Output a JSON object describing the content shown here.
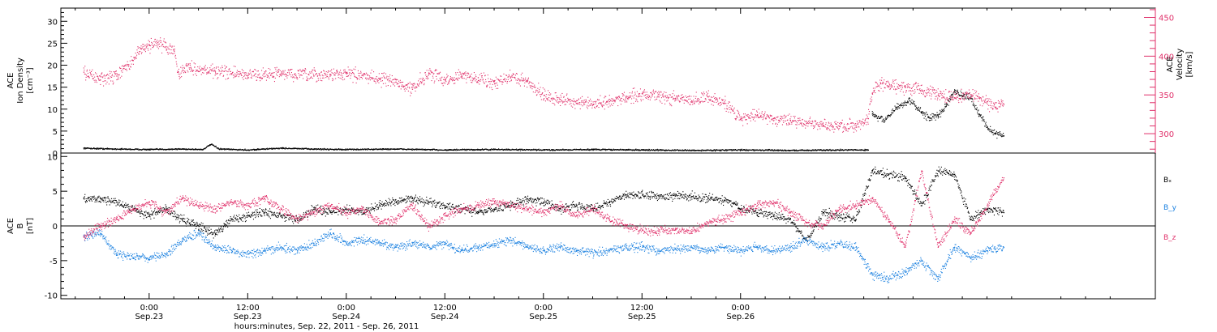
{
  "chart_data": [
    {
      "panel": "plasma",
      "type": "scatter",
      "left_axis": {
        "label_lines": [
          "ACE",
          "Ion Density",
          "[cm⁻³]"
        ],
        "ylim": [
          0,
          33
        ],
        "ticks": [
          0,
          5,
          10,
          15,
          20,
          25,
          30
        ]
      },
      "right_axis": {
        "label_lines": [
          "ACE",
          "Velocity",
          "[km/s]"
        ],
        "ylim": [
          275,
          462
        ],
        "ticks": [
          300,
          350,
          400,
          450
        ],
        "color": "#e0306a"
      },
      "series": [
        {
          "axis": "left",
          "color": "#000000",
          "points": [
            [
              -8,
              1.2
            ],
            [
              -4,
              1.0
            ],
            [
              0,
              0.9
            ],
            [
              4,
              1.0
            ],
            [
              6.5,
              0.9
            ],
            [
              7.5,
              2.1
            ],
            [
              8.5,
              1.0
            ],
            [
              12,
              0.8
            ],
            [
              16,
              1.2
            ],
            [
              20,
              1.0
            ],
            [
              24,
              0.9
            ],
            [
              30,
              1.0
            ],
            [
              36,
              0.8
            ],
            [
              42,
              0.9
            ],
            [
              48,
              0.8
            ],
            [
              54,
              0.9
            ],
            [
              60,
              0.8
            ],
            [
              66,
              0.7
            ],
            [
              72,
              0.8
            ],
            [
              78,
              0.7
            ],
            [
              84,
              0.8
            ],
            [
              87.5,
              0.8
            ]
          ]
        },
        {
          "axis": "left",
          "color": "#000000",
          "points": [
            [
              88,
              9.0
            ],
            [
              89.5,
              7.5
            ],
            [
              91,
              10.5
            ],
            [
              92.5,
              12.0
            ],
            [
              94,
              9.5
            ],
            [
              95,
              8.0
            ],
            [
              96,
              8.5
            ],
            [
              97,
              11.0
            ],
            [
              98,
              14.5
            ],
            [
              99,
              13.0
            ],
            [
              100,
              12.5
            ],
            [
              101,
              9.0
            ],
            [
              102,
              6.0
            ],
            [
              103,
              4.5
            ],
            [
              104,
              4.0
            ]
          ]
        },
        {
          "axis": "right",
          "color": "#e0306a",
          "points": [
            [
              -8,
              380
            ],
            [
              -6,
              370
            ],
            [
              -4,
              375
            ],
            [
              -2,
              395
            ],
            [
              -1,
              410
            ],
            [
              0,
              415
            ],
            [
              1,
              418
            ],
            [
              2,
              413
            ],
            [
              3,
              407
            ],
            [
              3.5,
              380
            ],
            [
              5,
              386
            ],
            [
              8,
              381
            ],
            [
              12,
              376
            ],
            [
              16,
              378
            ],
            [
              20,
              375
            ],
            [
              22,
              377
            ],
            [
              24,
              378
            ],
            [
              28,
              372
            ],
            [
              30,
              367
            ],
            [
              32,
              358
            ],
            [
              34,
              379
            ],
            [
              36,
              370
            ],
            [
              38,
              375
            ],
            [
              40,
              373
            ],
            [
              42,
              365
            ],
            [
              44,
              374
            ],
            [
              46,
              368
            ],
            [
              48,
              350
            ],
            [
              50,
              345
            ],
            [
              52,
              340
            ],
            [
              54,
              338
            ],
            [
              56,
              342
            ],
            [
              58,
              347
            ],
            [
              60,
              352
            ],
            [
              62,
              348
            ],
            [
              64,
              346
            ],
            [
              66,
              343
            ],
            [
              68,
              348
            ],
            [
              70,
              340
            ],
            [
              72,
              320
            ],
            [
              74,
              325
            ],
            [
              76,
              320
            ],
            [
              78,
              318
            ],
            [
              80,
              314
            ],
            [
              82,
              311
            ],
            [
              84,
              310
            ],
            [
              86,
              311
            ],
            [
              87.5,
              320
            ],
            [
              88,
              352
            ],
            [
              89,
              365
            ],
            [
              90,
              362
            ],
            [
              92,
              360
            ],
            [
              94,
              357
            ],
            [
              96,
              350
            ],
            [
              98,
              347
            ],
            [
              100,
              351
            ],
            [
              101,
              347
            ],
            [
              102,
              342
            ],
            [
              103,
              335
            ],
            [
              104,
              338
            ]
          ]
        }
      ]
    },
    {
      "panel": "magnetic-field",
      "type": "scatter",
      "left_axis": {
        "label_lines": [
          "ACE",
          "B",
          "[nT]"
        ],
        "ylim": [
          -10.5,
          10.5
        ],
        "ticks": [
          -10,
          -5,
          0,
          5,
          10
        ]
      },
      "series": [
        {
          "name": "Bₓ",
          "color": "#000000",
          "points": [
            [
              -8,
              4.0
            ],
            [
              -6,
              4.0
            ],
            [
              -4,
              3.5
            ],
            [
              -2,
              2.5
            ],
            [
              0,
              1.5
            ],
            [
              2,
              2.5
            ],
            [
              4,
              1.0
            ],
            [
              6,
              0.0
            ],
            [
              8,
              -1.0
            ],
            [
              10,
              1.0
            ],
            [
              12,
              1.5
            ],
            [
              14,
              2.0
            ],
            [
              16,
              1.5
            ],
            [
              18,
              1.0
            ],
            [
              20,
              2.5
            ],
            [
              22,
              2.0
            ],
            [
              24,
              2.5
            ],
            [
              26,
              2.0
            ],
            [
              28,
              3.0
            ],
            [
              30,
              3.5
            ],
            [
              32,
              4.0
            ],
            [
              34,
              3.5
            ],
            [
              36,
              3.0
            ],
            [
              38,
              2.5
            ],
            [
              40,
              2.0
            ],
            [
              42,
              2.5
            ],
            [
              44,
              3.0
            ],
            [
              46,
              4.0
            ],
            [
              48,
              3.5
            ],
            [
              50,
              2.5
            ],
            [
              52,
              3.0
            ],
            [
              54,
              2.5
            ],
            [
              56,
              3.5
            ],
            [
              58,
              4.5
            ],
            [
              60,
              4.5
            ],
            [
              62,
              4.3
            ],
            [
              64,
              4.4
            ],
            [
              66,
              4.3
            ],
            [
              68,
              4.0
            ],
            [
              70,
              3.8
            ],
            [
              72,
              2.5
            ],
            [
              74,
              2.0
            ],
            [
              76,
              1.5
            ],
            [
              78,
              1.0
            ],
            [
              80,
              -2.0
            ],
            [
              82,
              2.0
            ],
            [
              84,
              1.5
            ],
            [
              86,
              1.0
            ],
            [
              88,
              8.0
            ],
            [
              90,
              7.5
            ],
            [
              92,
              7.0
            ],
            [
              94,
              3.0
            ],
            [
              96,
              8.0
            ],
            [
              98,
              7.5
            ],
            [
              100,
              1.0
            ],
            [
              102,
              2.5
            ],
            [
              104,
              2.0
            ]
          ]
        },
        {
          "name": "B_y",
          "color": "#1a80e0",
          "points": [
            [
              -8,
              -1.5
            ],
            [
              -6,
              -1.0
            ],
            [
              -4,
              -4.0
            ],
            [
              -2,
              -4.5
            ],
            [
              0,
              -4.5
            ],
            [
              2,
              -4.0
            ],
            [
              4,
              -2.0
            ],
            [
              6,
              -1.0
            ],
            [
              8,
              -3.0
            ],
            [
              10,
              -3.5
            ],
            [
              12,
              -4.0
            ],
            [
              14,
              -3.5
            ],
            [
              16,
              -3.0
            ],
            [
              18,
              -3.5
            ],
            [
              20,
              -2.5
            ],
            [
              22,
              -1.0
            ],
            [
              24,
              -2.5
            ],
            [
              26,
              -2.0
            ],
            [
              28,
              -2.5
            ],
            [
              30,
              -3.0
            ],
            [
              32,
              -2.5
            ],
            [
              34,
              -3.0
            ],
            [
              36,
              -2.5
            ],
            [
              38,
              -3.5
            ],
            [
              40,
              -3.0
            ],
            [
              42,
              -2.5
            ],
            [
              44,
              -2.0
            ],
            [
              46,
              -3.0
            ],
            [
              48,
              -3.5
            ],
            [
              50,
              -3.0
            ],
            [
              52,
              -3.5
            ],
            [
              54,
              -3.8
            ],
            [
              56,
              -3.5
            ],
            [
              58,
              -3.0
            ],
            [
              60,
              -3.0
            ],
            [
              62,
              -3.5
            ],
            [
              64,
              -3.3
            ],
            [
              66,
              -3.0
            ],
            [
              68,
              -3.5
            ],
            [
              70,
              -3.0
            ],
            [
              72,
              -3.5
            ],
            [
              74,
              -3.0
            ],
            [
              76,
              -3.5
            ],
            [
              78,
              -3.0
            ],
            [
              80,
              -2.0
            ],
            [
              82,
              -3.0
            ],
            [
              84,
              -2.5
            ],
            [
              86,
              -3.0
            ],
            [
              88,
              -7.0
            ],
            [
              90,
              -7.5
            ],
            [
              92,
              -6.5
            ],
            [
              94,
              -5.0
            ],
            [
              96,
              -7.5
            ],
            [
              98,
              -3.0
            ],
            [
              100,
              -4.5
            ],
            [
              102,
              -3.5
            ],
            [
              104,
              -3.0
            ]
          ]
        },
        {
          "name": "B_z",
          "color": "#e0306a",
          "points": [
            [
              -8,
              -1.5
            ],
            [
              -6,
              0.0
            ],
            [
              -4,
              1.0
            ],
            [
              -2,
              2.5
            ],
            [
              0,
              3.5
            ],
            [
              2,
              2.0
            ],
            [
              4,
              4.0
            ],
            [
              6,
              3.0
            ],
            [
              8,
              2.5
            ],
            [
              10,
              3.5
            ],
            [
              12,
              3.0
            ],
            [
              14,
              4.0
            ],
            [
              16,
              2.5
            ],
            [
              18,
              1.0
            ],
            [
              20,
              2.0
            ],
            [
              22,
              3.0
            ],
            [
              24,
              2.0
            ],
            [
              26,
              2.5
            ],
            [
              28,
              0.5
            ],
            [
              30,
              1.0
            ],
            [
              32,
              3.0
            ],
            [
              34,
              0.0
            ],
            [
              36,
              1.5
            ],
            [
              38,
              2.5
            ],
            [
              40,
              3.0
            ],
            [
              42,
              3.5
            ],
            [
              44,
              3.0
            ],
            [
              46,
              2.5
            ],
            [
              48,
              2.0
            ],
            [
              50,
              3.0
            ],
            [
              52,
              1.5
            ],
            [
              54,
              2.5
            ],
            [
              56,
              1.0
            ],
            [
              58,
              0.0
            ],
            [
              60,
              -0.5
            ],
            [
              62,
              -0.7
            ],
            [
              64,
              -0.5
            ],
            [
              66,
              -0.7
            ],
            [
              68,
              0.5
            ],
            [
              70,
              1.0
            ],
            [
              72,
              2.0
            ],
            [
              74,
              3.0
            ],
            [
              76,
              3.5
            ],
            [
              78,
              2.0
            ],
            [
              80,
              0.5
            ],
            [
              82,
              0.0
            ],
            [
              84,
              2.5
            ],
            [
              86,
              3.0
            ],
            [
              88,
              4.0
            ],
            [
              90,
              1.0
            ],
            [
              92,
              -3.0
            ],
            [
              94,
              8.0
            ],
            [
              96,
              -3.0
            ],
            [
              98,
              1.0
            ],
            [
              100,
              -1.0
            ],
            [
              102,
              3.0
            ],
            [
              104,
              7.0
            ]
          ]
        }
      ]
    }
  ],
  "x_axis": {
    "label": "hours:minutes, Sep. 22, 2011 - Sep. 26, 2011",
    "xlim": [
      -10.75,
      122.5
    ],
    "ticks": [
      {
        "h": 0,
        "time": "0:00",
        "date": "Sep.23"
      },
      {
        "h": 12,
        "time": "12:00",
        "date": "Sep.23"
      },
      {
        "h": 24,
        "time": "0:00",
        "date": "Sep.24"
      },
      {
        "h": 36,
        "time": "12:00",
        "date": "Sep.24"
      },
      {
        "h": 48,
        "time": "0:00",
        "date": "Sep.25"
      },
      {
        "h": 60,
        "time": "12:00",
        "date": "Sep.25"
      },
      {
        "h": 72,
        "time": "0:00",
        "date": "Sep.26"
      }
    ]
  }
}
